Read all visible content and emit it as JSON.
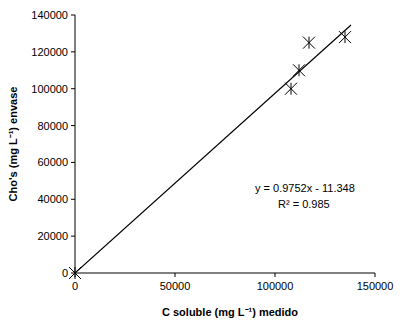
{
  "chart_data": {
    "type": "scatter",
    "x_label": "C soluble  (mg L⁻¹)  medido",
    "y_label": "Cho's (mg L⁻¹) envase",
    "x": [
      0,
      108000,
      112000,
      117000,
      135000
    ],
    "values": [
      0,
      100000,
      110000,
      125000,
      128000
    ],
    "color": "#000000",
    "marker": "star",
    "xlim": [
      0,
      150000
    ],
    "xticks": [
      0,
      50000,
      100000,
      150000
    ],
    "ylim": [
      0,
      140000
    ],
    "yticks": [
      0,
      20000,
      40000,
      60000,
      80000,
      100000,
      120000,
      140000
    ],
    "grid": false,
    "trendline": {
      "slope": 0.9752,
      "intercept": -11.348,
      "x": [
        0,
        138000
      ],
      "color": "#000000",
      "equation": "y = 0.9752x - 11.348",
      "r2": 0.985,
      "r2_label": "R² = 0.985"
    }
  }
}
